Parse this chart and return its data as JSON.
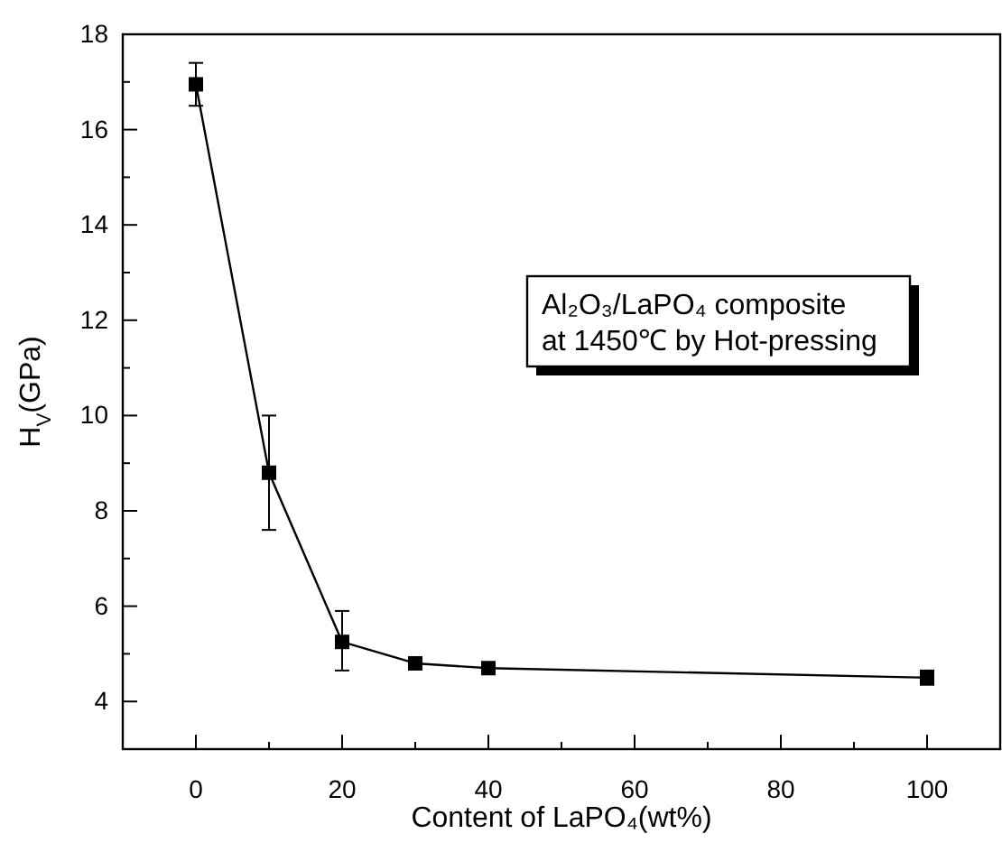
{
  "chart_data": {
    "type": "line",
    "xlabel": "Content of LaPO₄(wt%)",
    "ylabel": "H$_{V}$(GPa)",
    "x": [
      0,
      10,
      20,
      30,
      40,
      100
    ],
    "series": [
      {
        "color": "#000000",
        "values": [
          16.95,
          8.8,
          5.25,
          4.8,
          4.7,
          4.5
        ],
        "errors": [
          [
            16.5,
            17.4
          ],
          [
            7.6,
            10.0
          ],
          [
            4.65,
            5.9
          ],
          null,
          null,
          [
            4.35,
            4.65
          ]
        ]
      }
    ],
    "marker": "square",
    "line_style": "solid",
    "xlim": [
      -10,
      110
    ],
    "xticks": [
      0,
      {
        "value": 10,
        "label": null
      },
      20,
      {
        "value": 30,
        "label": null
      },
      40,
      {
        "value": 50,
        "label": null
      },
      60,
      {
        "value": 70,
        "label": null
      },
      80,
      {
        "value": 90,
        "label": null
      },
      100
    ],
    "ylim": [
      3,
      18
    ],
    "yticks": [
      4,
      {
        "value": 5,
        "label": null
      },
      6,
      {
        "value": 7,
        "label": null
      },
      8,
      {
        "value": 9,
        "label": null
      },
      10,
      {
        "value": 11,
        "label": null
      },
      12,
      {
        "value": 13,
        "label": null
      },
      14,
      {
        "value": 15,
        "label": null
      },
      16,
      {
        "value": 17,
        "label": null
      },
      18
    ],
    "annotations": [
      "Al₂O₃/LaPO₄ composite\nat 1450℃ by Hot-pressing"
    ]
  }
}
